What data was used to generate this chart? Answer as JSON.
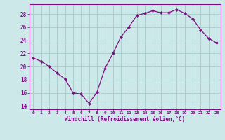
{
  "x": [
    0,
    1,
    2,
    3,
    4,
    5,
    6,
    7,
    8,
    9,
    10,
    11,
    12,
    13,
    14,
    15,
    16,
    17,
    18,
    19,
    20,
    21,
    22,
    23
  ],
  "y": [
    21.3,
    20.8,
    20.0,
    19.0,
    18.1,
    16.0,
    15.8,
    14.4,
    16.1,
    19.7,
    22.0,
    24.5,
    26.0,
    27.8,
    28.1,
    28.5,
    28.2,
    28.2,
    28.7,
    28.1,
    27.3,
    25.6,
    24.3,
    23.6
  ],
  "line_color": "#7B1082",
  "marker": "D",
  "marker_size": 2.2,
  "bg_color": "#cce8e8",
  "grid_color": "#aacece",
  "xlabel": "Windchill (Refroidissement éolien,°C)",
  "yticks": [
    14,
    16,
    18,
    20,
    22,
    24,
    26,
    28
  ],
  "xlim": [
    -0.5,
    23.5
  ],
  "ylim": [
    13.5,
    29.5
  ],
  "tick_color": "#7B1082",
  "label_color": "#7B1082",
  "font": "monospace",
  "xtick_fontsize": 4.5,
  "ytick_fontsize": 5.5,
  "xlabel_fontsize": 5.5
}
